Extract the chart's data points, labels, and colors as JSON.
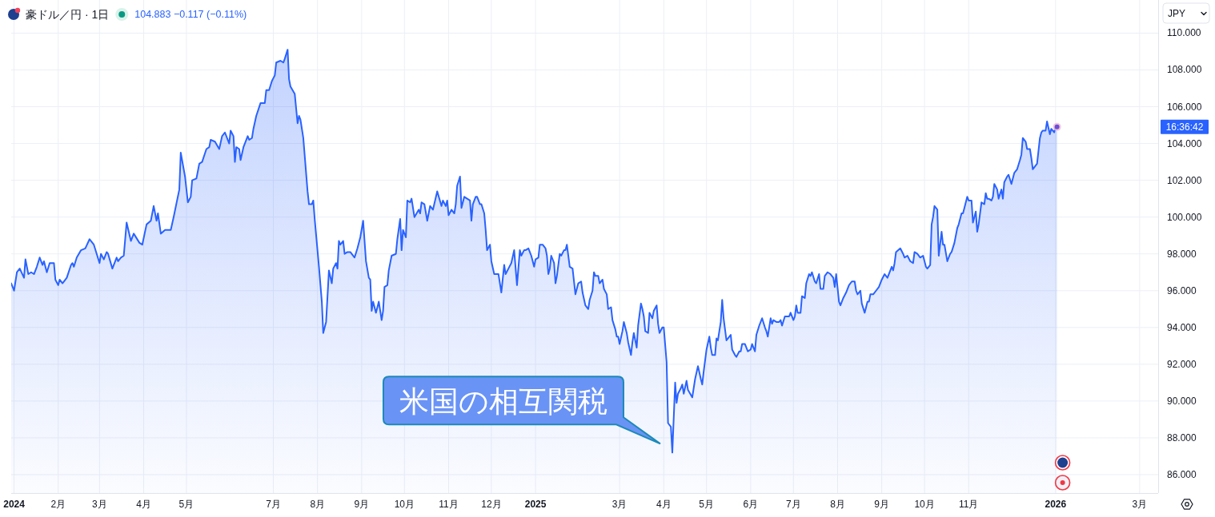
{
  "chart_data": {
    "type": "area",
    "title": "豪ドル／円 · 1日",
    "subtitle": "104.883 −0.117 (−0.11%)",
    "ylabel": "JPY",
    "color": "#2962ff",
    "grid": true,
    "xlim": [
      "2023-12-30",
      "2026-03-14"
    ],
    "ylim": [
      85,
      111.8
    ],
    "xticks": [
      {
        "value": "2024-01-01",
        "label": "2024"
      },
      {
        "value": "2024-02-01",
        "label": "2月"
      },
      {
        "value": "2024-03-01",
        "label": "3月"
      },
      {
        "value": "2024-04-01",
        "label": "4月"
      },
      {
        "value": "2024-05-01",
        "label": "5月"
      },
      {
        "value": "2024-07-01",
        "label": "7月"
      },
      {
        "value": "2024-08-01",
        "label": "8月"
      },
      {
        "value": "2024-09-01",
        "label": "9月"
      },
      {
        "value": "2024-10-01",
        "label": "10月"
      },
      {
        "value": "2024-11-01",
        "label": "11月"
      },
      {
        "value": "2024-12-01",
        "label": "12月"
      },
      {
        "value": "2025-01-01",
        "label": "2025"
      },
      {
        "value": "2025-03-01",
        "label": "3月"
      },
      {
        "value": "2025-04-01",
        "label": "4月"
      },
      {
        "value": "2025-05-01",
        "label": "5月"
      },
      {
        "value": "2025-06-01",
        "label": "6月"
      },
      {
        "value": "2025-07-01",
        "label": "7月"
      },
      {
        "value": "2025-08-01",
        "label": "8月"
      },
      {
        "value": "2025-09-01",
        "label": "9月"
      },
      {
        "value": "2025-10-01",
        "label": "10月"
      },
      {
        "value": "2025-11-01",
        "label": "11月"
      },
      {
        "value": "2026-01-01",
        "label": "2026"
      },
      {
        "value": "2026-03-01",
        "label": "3月"
      }
    ],
    "yticks": [
      {
        "value": 86,
        "label": "86.000"
      },
      {
        "value": 88,
        "label": "88.000"
      },
      {
        "value": 90,
        "label": "90.000"
      },
      {
        "value": 92,
        "label": "92.000"
      },
      {
        "value": 94,
        "label": "94.000"
      },
      {
        "value": 96,
        "label": "96.000"
      },
      {
        "value": 98,
        "label": "98.000"
      },
      {
        "value": 100,
        "label": "100.000"
      },
      {
        "value": 102,
        "label": "102.000"
      },
      {
        "value": 104,
        "label": "104.000"
      },
      {
        "value": 106,
        "label": "106.000"
      },
      {
        "value": 108,
        "label": "108.000"
      },
      {
        "value": 110,
        "label": "110.000"
      }
    ],
    "annotations": [
      "米国の相互関税",
      "16:36:42"
    ],
    "x": [
      "2023-12-30",
      "2024-01-01",
      "2024-01-03",
      "2024-01-05",
      "2024-01-08",
      "2024-01-09",
      "2024-01-11",
      "2024-01-13",
      "2024-01-15",
      "2024-01-17",
      "2024-01-19",
      "2024-01-21",
      "2024-01-22",
      "2024-01-24",
      "2024-01-26",
      "2024-01-29",
      "2024-01-30",
      "2024-02-01",
      "2024-02-02",
      "2024-02-04",
      "2024-02-07",
      "2024-02-10",
      "2024-02-11",
      "2024-02-12",
      "2024-02-14",
      "2024-02-17",
      "2024-02-20",
      "2024-02-23",
      "2024-02-26",
      "2024-03-01",
      "2024-03-02",
      "2024-03-04",
      "2024-03-06",
      "2024-03-07",
      "2024-03-10",
      "2024-03-13",
      "2024-03-14",
      "2024-03-16",
      "2024-03-18",
      "2024-03-20",
      "2024-03-23",
      "2024-03-25",
      "2024-03-29",
      "2024-03-31",
      "2024-04-03",
      "2024-04-06",
      "2024-04-08",
      "2024-04-10",
      "2024-04-11",
      "2024-04-13",
      "2024-04-16",
      "2024-04-20",
      "2024-04-22",
      "2024-04-26",
      "2024-04-27",
      "2024-04-30",
      "2024-05-02",
      "2024-05-04",
      "2024-05-05",
      "2024-05-08",
      "2024-05-10",
      "2024-05-12",
      "2024-05-15",
      "2024-05-17",
      "2024-05-18",
      "2024-05-21",
      "2024-05-24",
      "2024-05-26",
      "2024-05-28",
      "2024-05-31",
      "2024-06-01",
      "2024-06-03",
      "2024-06-04",
      "2024-06-05",
      "2024-06-07",
      "2024-06-08",
      "2024-06-10",
      "2024-06-13",
      "2024-06-14",
      "2024-06-16",
      "2024-06-17",
      "2024-06-19",
      "2024-06-22",
      "2024-06-25",
      "2024-06-26",
      "2024-06-28",
      "2024-06-30",
      "2024-07-02",
      "2024-07-03",
      "2024-07-06",
      "2024-07-08",
      "2024-07-09",
      "2024-07-11",
      "2024-07-12",
      "2024-07-13",
      "2024-07-16",
      "2024-07-18",
      "2024-07-19",
      "2024-07-20",
      "2024-07-22",
      "2024-07-25",
      "2024-07-26",
      "2024-07-28",
      "2024-07-29",
      "2024-07-30",
      "2024-08-02",
      "2024-08-04",
      "2024-08-05",
      "2024-08-07",
      "2024-08-08",
      "2024-08-09",
      "2024-08-11",
      "2024-08-12",
      "2024-08-14",
      "2024-08-15",
      "2024-08-16",
      "2024-08-17",
      "2024-08-19",
      "2024-08-20",
      "2024-08-22",
      "2024-08-24",
      "2024-08-27",
      "2024-08-29",
      "2024-08-31",
      "2024-09-02",
      "2024-09-04",
      "2024-09-06",
      "2024-09-07",
      "2024-09-08",
      "2024-09-09",
      "2024-09-11",
      "2024-09-13",
      "2024-09-15",
      "2024-09-16",
      "2024-09-17",
      "2024-09-19",
      "2024-09-20",
      "2024-09-22",
      "2024-09-25",
      "2024-09-26",
      "2024-09-28",
      "2024-09-29",
      "2024-09-30",
      "2024-10-02",
      "2024-10-03",
      "2024-10-05",
      "2024-10-06",
      "2024-10-08",
      "2024-10-11",
      "2024-10-12",
      "2024-10-13",
      "2024-10-15",
      "2024-10-17",
      "2024-10-19",
      "2024-10-21",
      "2024-10-24",
      "2024-10-27",
      "2024-10-28",
      "2024-10-30",
      "2024-10-31",
      "2024-11-01",
      "2024-11-03",
      "2024-11-05",
      "2024-11-06",
      "2024-11-07",
      "2024-11-09",
      "2024-11-10",
      "2024-11-12",
      "2024-11-14",
      "2024-11-16",
      "2024-11-17",
      "2024-11-18",
      "2024-11-20",
      "2024-11-21",
      "2024-11-23",
      "2024-11-24",
      "2024-11-26",
      "2024-11-27",
      "2024-11-28",
      "2024-11-30",
      "2024-12-01",
      "2024-12-03",
      "2024-12-04",
      "2024-12-06",
      "2024-12-08",
      "2024-12-10",
      "2024-12-11",
      "2024-12-13",
      "2024-12-15",
      "2024-12-17",
      "2024-12-19",
      "2024-12-21",
      "2024-12-22",
      "2024-12-24",
      "2024-12-25",
      "2024-12-27",
      "2024-12-29",
      "2024-12-31",
      "2025-01-01",
      "2025-01-03",
      "2025-01-04",
      "2025-01-06",
      "2025-01-08",
      "2025-01-09",
      "2025-01-10",
      "2025-01-11",
      "2025-01-12",
      "2025-01-14",
      "2025-01-15",
      "2025-01-16",
      "2025-01-18",
      "2025-01-19",
      "2025-01-21",
      "2025-01-22",
      "2025-01-23",
      "2025-01-25",
      "2025-01-27",
      "2025-01-29",
      "2025-01-31",
      "2025-02-02",
      "2025-02-03",
      "2025-02-05",
      "2025-02-07",
      "2025-02-08",
      "2025-02-10",
      "2025-02-11",
      "2025-02-12",
      "2025-02-14",
      "2025-02-15",
      "2025-02-17",
      "2025-02-18",
      "2025-02-20",
      "2025-02-21",
      "2025-02-23",
      "2025-02-24",
      "2025-02-26",
      "2025-02-27",
      "2025-02-28",
      "2025-03-01",
      "2025-03-03",
      "2025-03-04",
      "2025-03-06",
      "2025-03-07",
      "2025-03-09",
      "2025-03-10",
      "2025-03-11",
      "2025-03-13",
      "2025-03-14",
      "2025-03-16",
      "2025-03-17",
      "2025-03-18",
      "2025-03-19",
      "2025-03-21",
      "2025-03-22",
      "2025-03-24",
      "2025-03-25",
      "2025-03-27",
      "2025-03-28",
      "2025-03-29",
      "2025-03-31",
      "2025-04-01",
      "2025-04-03",
      "2025-04-04",
      "2025-04-06",
      "2025-04-07",
      "2025-04-09",
      "2025-04-10",
      "2025-04-11",
      "2025-04-13",
      "2025-04-14",
      "2025-04-15",
      "2025-04-17",
      "2025-04-18",
      "2025-04-21",
      "2025-04-23",
      "2025-04-25",
      "2025-04-27",
      "2025-04-28",
      "2025-04-29",
      "2025-05-01",
      "2025-05-03",
      "2025-05-04",
      "2025-05-05",
      "2025-05-07",
      "2025-05-08",
      "2025-05-09",
      "2025-05-11",
      "2025-05-12",
      "2025-05-13",
      "2025-05-15",
      "2025-05-16",
      "2025-05-18",
      "2025-05-19",
      "2025-05-21",
      "2025-05-22",
      "2025-05-24",
      "2025-05-25",
      "2025-05-26",
      "2025-05-28",
      "2025-05-29",
      "2025-05-30",
      "2025-06-01",
      "2025-06-02",
      "2025-06-04",
      "2025-06-05",
      "2025-06-07",
      "2025-06-09",
      "2025-06-11",
      "2025-06-12",
      "2025-06-13",
      "2025-06-15",
      "2025-06-16",
      "2025-06-17",
      "2025-06-19",
      "2025-06-21",
      "2025-06-22",
      "2025-06-23",
      "2025-06-25",
      "2025-06-26",
      "2025-06-28",
      "2025-06-29",
      "2025-07-01",
      "2025-07-02",
      "2025-07-03",
      "2025-07-04",
      "2025-07-06",
      "2025-07-07",
      "2025-07-09",
      "2025-07-10",
      "2025-07-12",
      "2025-07-13",
      "2025-07-14",
      "2025-07-16",
      "2025-07-17",
      "2025-07-19",
      "2025-07-20",
      "2025-07-22",
      "2025-07-23",
      "2025-07-25",
      "2025-07-27",
      "2025-07-29",
      "2025-07-30",
      "2025-07-31",
      "2025-08-02",
      "2025-08-03",
      "2025-08-05",
      "2025-08-07",
      "2025-08-09",
      "2025-08-11",
      "2025-08-13",
      "2025-08-14",
      "2025-08-15",
      "2025-08-17",
      "2025-08-18",
      "2025-08-20",
      "2025-08-22",
      "2025-08-23",
      "2025-08-24",
      "2025-08-26",
      "2025-08-28",
      "2025-08-30",
      "2025-09-01",
      "2025-09-03",
      "2025-09-05",
      "2025-09-08",
      "2025-09-09",
      "2025-09-10",
      "2025-09-11",
      "2025-09-14",
      "2025-09-16",
      "2025-09-17",
      "2025-09-19",
      "2025-09-21",
      "2025-09-23",
      "2025-09-24",
      "2025-09-26",
      "2025-09-28",
      "2025-09-30",
      "2025-10-02",
      "2025-10-03",
      "2025-10-05",
      "2025-10-06",
      "2025-10-07",
      "2025-10-08",
      "2025-10-10",
      "2025-10-11",
      "2025-10-13",
      "2025-10-14",
      "2025-10-15",
      "2025-10-17",
      "2025-10-19",
      "2025-10-20",
      "2025-10-22",
      "2025-10-24",
      "2025-10-25",
      "2025-10-27",
      "2025-10-28",
      "2025-10-29",
      "2025-10-31",
      "2025-11-01",
      "2025-11-03",
      "2025-11-04",
      "2025-11-06",
      "2025-11-07",
      "2025-11-08",
      "2025-11-10",
      "2025-11-12",
      "2025-11-13",
      "2025-11-14",
      "2025-11-15",
      "2025-11-17",
      "2025-11-18",
      "2025-11-19",
      "2025-11-21",
      "2025-11-22",
      "2025-11-24",
      "2025-11-25",
      "2025-11-26",
      "2025-11-28",
      "2025-11-29",
      "2025-12-01",
      "2025-12-03",
      "2025-12-04",
      "2025-12-05",
      "2025-12-07",
      "2025-12-08",
      "2025-12-09",
      "2025-12-11",
      "2025-12-12",
      "2025-12-14",
      "2025-12-15",
      "2025-12-16",
      "2025-12-18",
      "2025-12-19",
      "2025-12-21",
      "2025-12-22",
      "2025-12-23",
      "2025-12-25",
      "2025-12-26",
      "2025-12-28",
      "2025-12-29",
      "2025-12-31",
      "2026-01-01",
      "2026-01-02"
    ],
    "values": [
      96.4,
      96.0,
      97.0,
      97.2,
      96.7,
      97.7,
      96.9,
      97.0,
      96.9,
      97.3,
      97.8,
      97.4,
      97.6,
      97.0,
      97.5,
      97.5,
      96.6,
      96.3,
      96.6,
      96.4,
      96.7,
      97.4,
      97.5,
      97.3,
      97.8,
      98.2,
      98.3,
      98.8,
      98.5,
      97.5,
      98.0,
      97.7,
      98.1,
      98.0,
      97.2,
      97.8,
      97.6,
      97.8,
      97.9,
      99.7,
      98.7,
      99.1,
      98.6,
      98.5,
      99.6,
      99.8,
      100.6,
      99.8,
      100.2,
      99.1,
      99.3,
      99.3,
      100.0,
      101.5,
      103.5,
      102.2,
      100.8,
      101.1,
      102.0,
      102.1,
      102.9,
      103.0,
      103.7,
      103.8,
      104.2,
      104.1,
      103.7,
      104.4,
      104.6,
      104.0,
      104.7,
      104.4,
      103.0,
      103.8,
      103.7,
      103.1,
      103.8,
      104.4,
      104.2,
      104.3,
      104.8,
      105.5,
      106.2,
      106.2,
      106.9,
      106.9,
      107.4,
      107.7,
      108.4,
      108.5,
      108.4,
      108.6,
      109.1,
      107.5,
      107.1,
      106.7,
      105.1,
      105.5,
      105.3,
      104.3,
      101.4,
      100.7,
      100.7,
      100.9,
      99.9,
      97.3,
      95.4,
      93.7,
      94.3,
      95.7,
      97.1,
      96.4,
      97.2,
      97.5,
      97.2,
      98.7,
      98.5,
      98.7,
      98.0,
      98.1,
      98.1,
      97.8,
      98.3,
      98.9,
      99.8,
      97.6,
      96.7,
      96.6,
      94.9,
      95.4,
      94.8,
      95.4,
      94.4,
      94.9,
      96.2,
      96.3,
      97.1,
      97.9,
      98.0,
      98.8,
      99.9,
      98.2,
      99.3,
      98.9,
      100.9,
      100.8,
      101.0,
      100.0,
      100.4,
      100.2,
      100.8,
      100.7,
      99.8,
      100.6,
      100.4,
      101.4,
      100.6,
      100.9,
      100.6,
      100.9,
      100.1,
      100.4,
      100.2,
      100.7,
      101.7,
      102.2,
      100.5,
      101.1,
      101.0,
      100.9,
      99.8,
      100.7,
      101.1,
      101.1,
      100.7,
      100.7,
      100.2,
      99.3,
      98.2,
      98.5,
      97.6,
      96.9,
      96.9,
      96.9,
      95.9,
      97.4,
      96.9,
      97.2,
      97.5,
      98.2,
      96.3,
      98.2,
      97.9,
      98.2,
      98.2,
      98.3,
      97.9,
      97.3,
      97.7,
      97.8,
      98.5,
      98.5,
      98.3,
      97.9,
      96.9,
      97.2,
      97.9,
      97.5,
      96.4,
      96.8,
      98.0,
      97.9,
      98.2,
      98.2,
      98.5,
      97.3,
      97.2,
      95.8,
      96.4,
      96.5,
      95.9,
      95.2,
      95.0,
      95.5,
      96.0,
      97.0,
      96.8,
      96.8,
      96.4,
      96.6,
      96.1,
      95.8,
      95.0,
      95.1,
      94.4,
      93.9,
      93.5,
      93.5,
      93.1,
      93.8,
      94.3,
      93.7,
      93.2,
      92.5,
      93.2,
      93.7,
      92.9,
      94.1,
      95.3,
      95.0,
      94.6,
      93.8,
      93.7,
      94.8,
      94.5,
      94.9,
      95.2,
      94.2,
      93.7,
      94.0,
      94.0,
      92.1,
      88.8,
      88.6,
      87.2,
      91.0,
      89.9,
      90.4,
      90.7,
      90.9,
      90.4,
      91.1,
      90.6,
      90.2,
      91.2,
      91.9,
      91.2,
      90.9,
      91.6,
      92.8,
      93.5,
      92.9,
      92.5,
      92.5,
      93.4,
      93.3,
      94.3,
      95.5,
      94.5,
      93.3,
      93.4,
      93.6,
      92.8,
      92.5,
      92.4,
      92.7,
      92.7,
      93.1,
      93.1,
      92.9,
      92.7,
      92.8,
      93.1,
      92.7,
      93.6,
      94.1,
      94.5,
      94.0,
      93.8,
      93.5,
      94.5,
      94.2,
      94.4,
      94.3,
      94.3,
      94.4,
      94.1,
      94.6,
      94.6,
      94.6,
      94.8,
      94.4,
      94.6,
      95.2,
      94.8,
      94.8,
      95.7,
      95.6,
      96.4,
      96.9,
      96.8,
      97.0,
      96.5,
      96.4,
      96.9,
      96.1,
      96.1,
      96.8,
      97.0,
      96.9,
      96.7,
      96.2,
      96.9,
      95.4,
      95.2,
      95.6,
      95.9,
      96.3,
      96.5,
      96.5,
      96.0,
      95.8,
      96.0,
      95.3,
      94.8,
      95.4,
      95.4,
      95.8,
      95.8,
      96.0,
      96.2,
      96.6,
      96.9,
      96.7,
      97.3,
      97.1,
      97.5,
      98.1,
      98.3,
      98.0,
      97.8,
      97.9,
      97.6,
      97.5,
      98.1,
      98.0,
      97.8,
      97.9,
      97.3,
      97.2,
      97.4,
      99.6,
      100.0,
      100.6,
      100.4,
      97.9,
      99.2,
      98.5,
      98.5,
      97.6,
      98.0,
      98.1,
      98.6,
      99.4,
      99.6,
      100.2,
      100.2,
      100.5,
      101.1,
      100.9,
      100.9,
      99.7,
      100.3,
      99.2,
      99.6,
      100.8,
      100.7,
      101.3,
      101.0,
      101.0,
      100.9,
      101.1,
      101.8,
      101.5,
      101.0,
      101.5,
      101.0,
      101.9,
      102.2,
      102.3,
      101.8,
      102.4,
      102.5,
      102.6,
      103.1,
      103.4,
      104.3,
      104.1,
      103.7,
      103.7,
      103.2,
      102.6,
      102.8,
      102.9,
      104.3,
      104.6,
      104.7,
      104.7,
      105.2,
      104.5,
      104.8,
      104.6,
      104.9,
      104.9
    ]
  }
}
